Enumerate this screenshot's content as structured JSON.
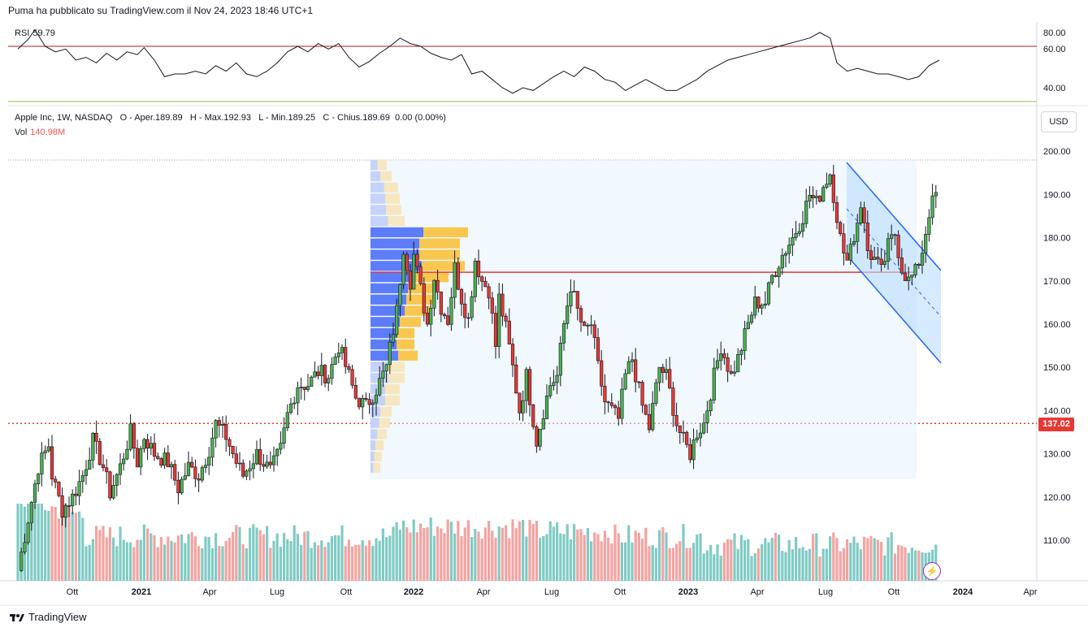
{
  "header": {
    "text": "Puma ha pubblicato su TradingView.com il Nov 24, 2023 18:46 UTC+1"
  },
  "rsi": {
    "label": "RSI",
    "value": "59.79",
    "upper": 70,
    "lower": 30,
    "ticks": [
      "80.00",
      "60.00",
      "40.00"
    ]
  },
  "legend": {
    "symbol": "Apple Inc, 1W, NASDAQ",
    "open": "O - Aper.189.89",
    "high": "H - Max.192.93",
    "low": "L - Min.189.25",
    "close": "C - Chius.189.69",
    "change": "0.00 (0.00%)"
  },
  "volume": {
    "label": "Vol",
    "value": "140.98M"
  },
  "currency": "USD",
  "price_tag": "137.02",
  "brand": "TradingView",
  "colors": {
    "up": "#26a69a",
    "down": "#ef5350",
    "candle_up": "#4caf50",
    "candle_down": "#e53935",
    "profile_blue": "#5c7cfa",
    "profile_yellow": "#f9c74f",
    "poc": "#e53935",
    "channel": "#2962ff",
    "rsi_line": "#131722",
    "rsi_band": "#b71c1c"
  },
  "chart_data": {
    "type": "candlestick",
    "ylim": [
      100,
      200
    ],
    "yticks": [
      "200.00",
      "190.00",
      "180.00",
      "170.00",
      "160.00",
      "150.00",
      "140.00",
      "130.00",
      "120.00",
      "110.00"
    ],
    "xticks": [
      {
        "label": "Ott",
        "bold": false
      },
      {
        "label": "2021",
        "bold": true
      },
      {
        "label": "Apr",
        "bold": false
      },
      {
        "label": "Lug",
        "bold": false
      },
      {
        "label": "Ott",
        "bold": false
      },
      {
        "label": "2022",
        "bold": true
      },
      {
        "label": "Apr",
        "bold": false
      },
      {
        "label": "Lug",
        "bold": false
      },
      {
        "label": "Ott",
        "bold": false
      },
      {
        "label": "2023",
        "bold": true
      },
      {
        "label": "Apr",
        "bold": false
      },
      {
        "label": "Lug",
        "bold": false
      },
      {
        "label": "Ott",
        "bold": false
      },
      {
        "label": "2024",
        "bold": true
      },
      {
        "label": "Apr",
        "bold": false
      }
    ],
    "close_path": [
      [
        0,
        103
      ],
      [
        6,
        127
      ],
      [
        9,
        132
      ],
      [
        10,
        125
      ],
      [
        13,
        117
      ],
      [
        16,
        120
      ],
      [
        19,
        125
      ],
      [
        22,
        133
      ],
      [
        25,
        127
      ],
      [
        27,
        121
      ],
      [
        30,
        127
      ],
      [
        33,
        135
      ],
      [
        35,
        128
      ],
      [
        37,
        134
      ],
      [
        40,
        130
      ],
      [
        44,
        128
      ],
      [
        47,
        122
      ],
      [
        50,
        127
      ],
      [
        53,
        125
      ],
      [
        56,
        131
      ],
      [
        58,
        137
      ],
      [
        61,
        134
      ],
      [
        64,
        128
      ],
      [
        66,
        125
      ],
      [
        70,
        130
      ],
      [
        74,
        126
      ],
      [
        77,
        131
      ],
      [
        79,
        139
      ],
      [
        82,
        146
      ],
      [
        85,
        146
      ],
      [
        88,
        149
      ],
      [
        91,
        148
      ],
      [
        94,
        155
      ],
      [
        97,
        148
      ],
      [
        99,
        143
      ],
      [
        102,
        141
      ],
      [
        105,
        145
      ],
      [
        108,
        150
      ],
      [
        111,
        163
      ],
      [
        113,
        178
      ],
      [
        115,
        170
      ],
      [
        116,
        176
      ],
      [
        118,
        168
      ],
      [
        120,
        160
      ],
      [
        122,
        171
      ],
      [
        124,
        164
      ],
      [
        126,
        161
      ],
      [
        128,
        173
      ],
      [
        130,
        166
      ],
      [
        132,
        161
      ],
      [
        134,
        175
      ],
      [
        136,
        170
      ],
      [
        138,
        168
      ],
      [
        140,
        155
      ],
      [
        141,
        166
      ],
      [
        143,
        159
      ],
      [
        145,
        150
      ],
      [
        147,
        140
      ],
      [
        149,
        148
      ],
      [
        151,
        138
      ],
      [
        152,
        133
      ],
      [
        154,
        140
      ],
      [
        156,
        146
      ],
      [
        158,
        148
      ],
      [
        160,
        160
      ],
      [
        162,
        169
      ],
      [
        164,
        163
      ],
      [
        166,
        158
      ],
      [
        168,
        160
      ],
      [
        170,
        150
      ],
      [
        172,
        142
      ],
      [
        174,
        140
      ],
      [
        176,
        138
      ],
      [
        178,
        148
      ],
      [
        180,
        152
      ],
      [
        183,
        141
      ],
      [
        185,
        136
      ],
      [
        188,
        150
      ],
      [
        190,
        148
      ],
      [
        193,
        137
      ],
      [
        195,
        133
      ],
      [
        197,
        130
      ],
      [
        199,
        135
      ],
      [
        201,
        137
      ],
      [
        204,
        148
      ],
      [
        206,
        155
      ],
      [
        209,
        148
      ],
      [
        211,
        152
      ],
      [
        214,
        160
      ],
      [
        216,
        165
      ],
      [
        219,
        165
      ],
      [
        221,
        171
      ],
      [
        224,
        176
      ],
      [
        227,
        180
      ],
      [
        230,
        185
      ],
      [
        232,
        190
      ],
      [
        234,
        188
      ],
      [
        236,
        192
      ],
      [
        238,
        195
      ],
      [
        240,
        185
      ],
      [
        242,
        175
      ],
      [
        245,
        180
      ],
      [
        247,
        188
      ],
      [
        249,
        177
      ],
      [
        251,
        175
      ],
      [
        253,
        172
      ],
      [
        255,
        178
      ],
      [
        257,
        181
      ],
      [
        259,
        173
      ],
      [
        261,
        170
      ],
      [
        263,
        172
      ],
      [
        265,
        177
      ],
      [
        267,
        186
      ],
      [
        269,
        190
      ]
    ],
    "rsi_path": [
      [
        0,
        68
      ],
      [
        3,
        75
      ],
      [
        5,
        82
      ],
      [
        8,
        70
      ],
      [
        11,
        66
      ],
      [
        14,
        68
      ],
      [
        17,
        60
      ],
      [
        20,
        62
      ],
      [
        23,
        58
      ],
      [
        26,
        65
      ],
      [
        29,
        60
      ],
      [
        32,
        66
      ],
      [
        35,
        64
      ],
      [
        37,
        69
      ],
      [
        40,
        60
      ],
      [
        43,
        48
      ],
      [
        46,
        50
      ],
      [
        49,
        50
      ],
      [
        52,
        52
      ],
      [
        55,
        50
      ],
      [
        58,
        56
      ],
      [
        61,
        52
      ],
      [
        64,
        58
      ],
      [
        67,
        50
      ],
      [
        70,
        48
      ],
      [
        73,
        52
      ],
      [
        76,
        58
      ],
      [
        79,
        66
      ],
      [
        82,
        70
      ],
      [
        85,
        66
      ],
      [
        88,
        72
      ],
      [
        91,
        68
      ],
      [
        94,
        72
      ],
      [
        97,
        62
      ],
      [
        100,
        55
      ],
      [
        103,
        59
      ],
      [
        106,
        65
      ],
      [
        109,
        70
      ],
      [
        112,
        76
      ],
      [
        115,
        72
      ],
      [
        118,
        70
      ],
      [
        121,
        65
      ],
      [
        124,
        62
      ],
      [
        127,
        60
      ],
      [
        130,
        64
      ],
      [
        133,
        50
      ],
      [
        136,
        52
      ],
      [
        139,
        46
      ],
      [
        142,
        40
      ],
      [
        145,
        36
      ],
      [
        148,
        40
      ],
      [
        151,
        38
      ],
      [
        154,
        43
      ],
      [
        157,
        48
      ],
      [
        160,
        52
      ],
      [
        163,
        48
      ],
      [
        166,
        55
      ],
      [
        169,
        52
      ],
      [
        172,
        46
      ],
      [
        175,
        44
      ],
      [
        178,
        38
      ],
      [
        181,
        42
      ],
      [
        184,
        46
      ],
      [
        187,
        42
      ],
      [
        190,
        38
      ],
      [
        193,
        38
      ],
      [
        196,
        42
      ],
      [
        199,
        46
      ],
      [
        202,
        52
      ],
      [
        205,
        56
      ],
      [
        208,
        60
      ],
      [
        211,
        62
      ],
      [
        214,
        64
      ],
      [
        217,
        66
      ],
      [
        220,
        68
      ],
      [
        223,
        70
      ],
      [
        226,
        72
      ],
      [
        229,
        74
      ],
      [
        232,
        76
      ],
      [
        235,
        80
      ],
      [
        238,
        76
      ],
      [
        240,
        58
      ],
      [
        243,
        52
      ],
      [
        246,
        54
      ],
      [
        249,
        52
      ],
      [
        252,
        50
      ],
      [
        255,
        50
      ],
      [
        258,
        48
      ],
      [
        261,
        46
      ],
      [
        264,
        48
      ],
      [
        267,
        56
      ],
      [
        270,
        60
      ]
    ],
    "profile_rows": 28,
    "poc_price": 172,
    "support_price": 137.02,
    "volume_bars": 280
  }
}
